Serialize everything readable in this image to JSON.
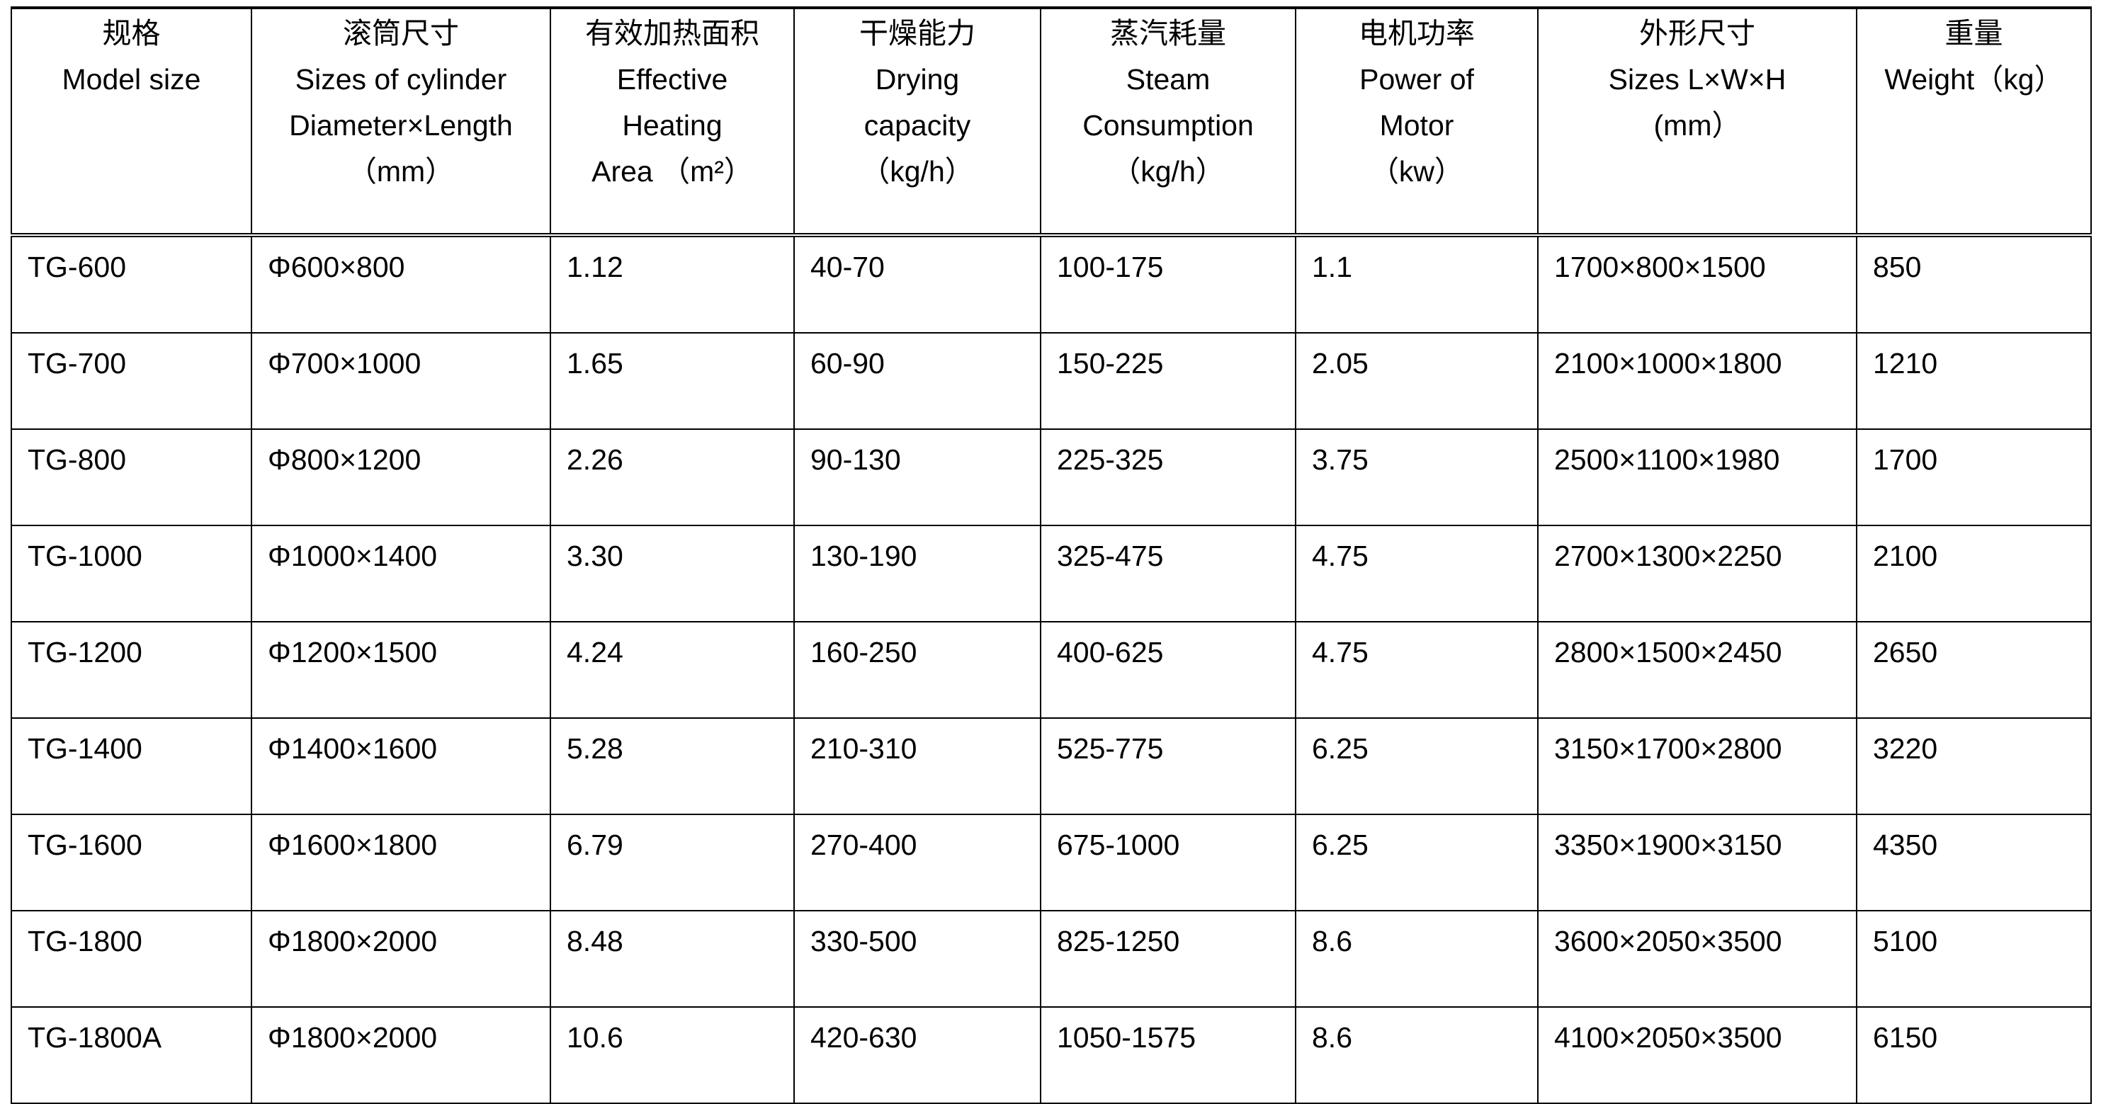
{
  "table": {
    "headers": [
      {
        "zh": "规格",
        "en": [
          "Model size"
        ]
      },
      {
        "zh": "滚筒尺寸",
        "en": [
          "Sizes of cylinder",
          "Diameter×Length",
          "（mm）"
        ]
      },
      {
        "zh": "有效加热面积",
        "en": [
          "Effective",
          "Heating",
          "Area （m²）"
        ]
      },
      {
        "zh": "干燥能力",
        "en": [
          "Drying",
          "capacity",
          "（kg/h）"
        ]
      },
      {
        "zh": "蒸汽耗量",
        "en": [
          "Steam",
          "Consumption",
          "（kg/h）"
        ]
      },
      {
        "zh": "电机功率",
        "en": [
          "Power of",
          "Motor",
          "（kw）"
        ]
      },
      {
        "zh": "外形尺寸",
        "en": [
          "Sizes L×W×H",
          "(mm）"
        ]
      },
      {
        "zh": "重量",
        "en": [
          "Weight（kg）"
        ]
      }
    ],
    "rows": [
      [
        "TG-600",
        "Φ600×800",
        "1.12",
        "40-70",
        "100-175",
        "1.1",
        "1700×800×1500",
        "850"
      ],
      [
        "TG-700",
        "Φ700×1000",
        "1.65",
        "60-90",
        "150-225",
        "2.05",
        "2100×1000×1800",
        "1210"
      ],
      [
        "TG-800",
        "Φ800×1200",
        "2.26",
        "90-130",
        "225-325",
        "3.75",
        "2500×1100×1980",
        "1700"
      ],
      [
        "TG-1000",
        "Φ1000×1400",
        "3.30",
        "130-190",
        "325-475",
        "4.75",
        "2700×1300×2250",
        "2100"
      ],
      [
        "TG-1200",
        "Φ1200×1500",
        "4.24",
        "160-250",
        "400-625",
        "4.75",
        "2800×1500×2450",
        "2650"
      ],
      [
        "TG-1400",
        "Φ1400×1600",
        "5.28",
        "210-310",
        "525-775",
        "6.25",
        "3150×1700×2800",
        "3220"
      ],
      [
        "TG-1600",
        "Φ1600×1800",
        "6.79",
        "270-400",
        "675-1000",
        "6.25",
        "3350×1900×3150",
        "4350"
      ],
      [
        "TG-1800",
        "Φ1800×2000",
        "8.48",
        "330-500",
        "825-1250",
        "8.6",
        "3600×2050×3500",
        "5100"
      ],
      [
        "TG-1800A",
        "Φ1800×2000",
        "10.6",
        "420-630",
        "1050-1575",
        "8.6",
        "4100×2050×3500",
        "6150"
      ]
    ]
  }
}
